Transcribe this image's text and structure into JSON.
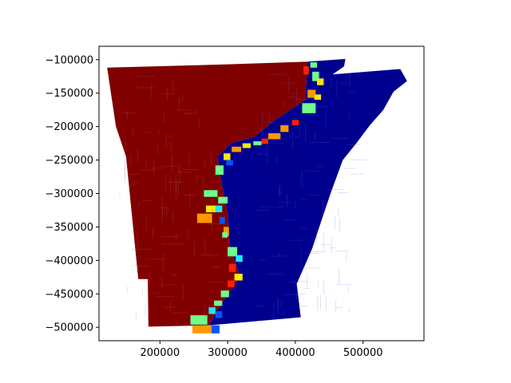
{
  "figure": {
    "background": "#ffffff",
    "axes_frame_color": "#000000"
  },
  "chart_data": {
    "type": "heatmap",
    "title": "",
    "xlabel": "",
    "ylabel": "",
    "xlim": [
      110000,
      590000
    ],
    "ylim": [
      -520000,
      -80000
    ],
    "x_ticks": [
      200000,
      300000,
      400000,
      500000
    ],
    "x_tick_labels": [
      "200000",
      "300000",
      "400000",
      "500000"
    ],
    "y_ticks": [
      -100000,
      -150000,
      -200000,
      -250000,
      -300000,
      -350000,
      -400000,
      -450000,
      -500000
    ],
    "y_tick_labels": [
      "−100000",
      "−150000",
      "−200000",
      "−250000",
      "−300000",
      "−350000",
      "−400000",
      "−450000",
      "−500000"
    ],
    "grid": false,
    "legend": false,
    "colormap": "jet",
    "colors": {
      "west_region": "#800000",
      "east_region": "#00008f",
      "boundary_red": "#ff2000",
      "boundary_orange": "#ff9800",
      "boundary_yellow": "#ffea00",
      "boundary_green": "#6dff8a",
      "boundary_cyan": "#1ce8ff",
      "boundary_blue": "#0055ff"
    },
    "regions": [
      {
        "name": "west",
        "fill": "west_region",
        "outline": [
          [
            122000,
            -112000
          ],
          [
            300000,
            -107000
          ],
          [
            418000,
            -103000
          ],
          [
            415000,
            -160000
          ],
          [
            370000,
            -190000
          ],
          [
            340000,
            -215000
          ],
          [
            305000,
            -225000
          ],
          [
            285000,
            -245000
          ],
          [
            290000,
            -278000
          ],
          [
            300000,
            -330000
          ],
          [
            302000,
            -372000
          ],
          [
            318000,
            -425000
          ],
          [
            290000,
            -466000
          ],
          [
            272000,
            -497000
          ],
          [
            183000,
            -499000
          ],
          [
            182000,
            -428000
          ],
          [
            168000,
            -428000
          ],
          [
            150000,
            -245000
          ],
          [
            135000,
            -200000
          ]
        ]
      },
      {
        "name": "east",
        "fill": "east_region",
        "outline": [
          [
            418000,
            -103000
          ],
          [
            474000,
            -99000
          ],
          [
            472000,
            -110000
          ],
          [
            455000,
            -122000
          ],
          [
            555000,
            -114000
          ],
          [
            565000,
            -132000
          ],
          [
            545000,
            -148000
          ],
          [
            530000,
            -175000
          ],
          [
            510000,
            -198000
          ],
          [
            490000,
            -225000
          ],
          [
            470000,
            -250000
          ],
          [
            452000,
            -300000
          ],
          [
            437000,
            -345000
          ],
          [
            425000,
            -382000
          ],
          [
            412000,
            -412000
          ],
          [
            402000,
            -435000
          ],
          [
            408000,
            -485000
          ],
          [
            272000,
            -497000
          ],
          [
            290000,
            -466000
          ],
          [
            318000,
            -425000
          ],
          [
            302000,
            -372000
          ],
          [
            300000,
            -330000
          ],
          [
            290000,
            -278000
          ],
          [
            285000,
            -245000
          ],
          [
            305000,
            -225000
          ],
          [
            340000,
            -215000
          ],
          [
            370000,
            -190000
          ],
          [
            415000,
            -160000
          ]
        ]
      }
    ],
    "boundary_cells": [
      {
        "x": 412000,
        "y": -110000,
        "w": 8000,
        "h": 12000,
        "fill": "boundary_red"
      },
      {
        "x": 422000,
        "y": -104000,
        "w": 10000,
        "h": 8000,
        "fill": "boundary_green"
      },
      {
        "x": 425000,
        "y": -118000,
        "w": 10000,
        "h": 14000,
        "fill": "boundary_green"
      },
      {
        "x": 432000,
        "y": -128000,
        "w": 10000,
        "h": 10000,
        "fill": "boundary_yellow"
      },
      {
        "x": 418000,
        "y": -145000,
        "w": 12000,
        "h": 12000,
        "fill": "boundary_orange"
      },
      {
        "x": 428000,
        "y": -152000,
        "w": 10000,
        "h": 8000,
        "fill": "boundary_yellow"
      },
      {
        "x": 410000,
        "y": -165000,
        "w": 20000,
        "h": 15000,
        "fill": "boundary_green"
      },
      {
        "x": 395000,
        "y": -190000,
        "w": 10000,
        "h": 8000,
        "fill": "boundary_red"
      },
      {
        "x": 378000,
        "y": -198000,
        "w": 12000,
        "h": 10000,
        "fill": "boundary_orange"
      },
      {
        "x": 360000,
        "y": -210000,
        "w": 18000,
        "h": 9000,
        "fill": "boundary_orange"
      },
      {
        "x": 350000,
        "y": -218000,
        "w": 10000,
        "h": 8000,
        "fill": "boundary_red"
      },
      {
        "x": 338000,
        "y": -222000,
        "w": 12000,
        "h": 6000,
        "fill": "boundary_green"
      },
      {
        "x": 322000,
        "y": -225000,
        "w": 12000,
        "h": 7000,
        "fill": "boundary_yellow"
      },
      {
        "x": 306000,
        "y": -230000,
        "w": 14000,
        "h": 8000,
        "fill": "boundary_orange"
      },
      {
        "x": 294000,
        "y": -240000,
        "w": 10000,
        "h": 10000,
        "fill": "boundary_yellow"
      },
      {
        "x": 282000,
        "y": -258000,
        "w": 12000,
        "h": 14000,
        "fill": "boundary_green"
      },
      {
        "x": 298000,
        "y": -250000,
        "w": 10000,
        "h": 8000,
        "fill": "boundary_blue"
      },
      {
        "x": 265000,
        "y": -295000,
        "w": 20000,
        "h": 10000,
        "fill": "boundary_green"
      },
      {
        "x": 286000,
        "y": -305000,
        "w": 14000,
        "h": 10000,
        "fill": "boundary_green"
      },
      {
        "x": 282000,
        "y": -318000,
        "w": 10000,
        "h": 10000,
        "fill": "boundary_cyan"
      },
      {
        "x": 268000,
        "y": -318000,
        "w": 14000,
        "h": 10000,
        "fill": "boundary_yellow"
      },
      {
        "x": 255000,
        "y": -330000,
        "w": 22000,
        "h": 14000,
        "fill": "boundary_orange"
      },
      {
        "x": 288000,
        "y": -335000,
        "w": 8000,
        "h": 10000,
        "fill": "boundary_blue"
      },
      {
        "x": 294000,
        "y": -350000,
        "w": 8000,
        "h": 14000,
        "fill": "boundary_orange"
      },
      {
        "x": 292000,
        "y": -358000,
        "w": 8000,
        "h": 8000,
        "fill": "boundary_green"
      },
      {
        "x": 300000,
        "y": -380000,
        "w": 14000,
        "h": 14000,
        "fill": "boundary_green"
      },
      {
        "x": 312000,
        "y": -392000,
        "w": 10000,
        "h": 10000,
        "fill": "boundary_cyan"
      },
      {
        "x": 302000,
        "y": -405000,
        "w": 10000,
        "h": 12000,
        "fill": "boundary_red"
      },
      {
        "x": 310000,
        "y": -420000,
        "w": 12000,
        "h": 10000,
        "fill": "boundary_yellow"
      },
      {
        "x": 300000,
        "y": -430000,
        "w": 10000,
        "h": 10000,
        "fill": "boundary_red"
      },
      {
        "x": 290000,
        "y": -445000,
        "w": 12000,
        "h": 10000,
        "fill": "boundary_green"
      },
      {
        "x": 280000,
        "y": -460000,
        "w": 12000,
        "h": 8000,
        "fill": "boundary_green"
      },
      {
        "x": 272000,
        "y": -470000,
        "w": 10000,
        "h": 10000,
        "fill": "boundary_cyan"
      },
      {
        "x": 282000,
        "y": -476000,
        "w": 10000,
        "h": 10000,
        "fill": "boundary_blue"
      },
      {
        "x": 245000,
        "y": -482000,
        "w": 25000,
        "h": 14000,
        "fill": "boundary_green"
      },
      {
        "x": 248000,
        "y": -497000,
        "w": 28000,
        "h": 12000,
        "fill": "boundary_orange"
      },
      {
        "x": 276000,
        "y": -497000,
        "w": 12000,
        "h": 12000,
        "fill": "boundary_blue"
      }
    ]
  }
}
